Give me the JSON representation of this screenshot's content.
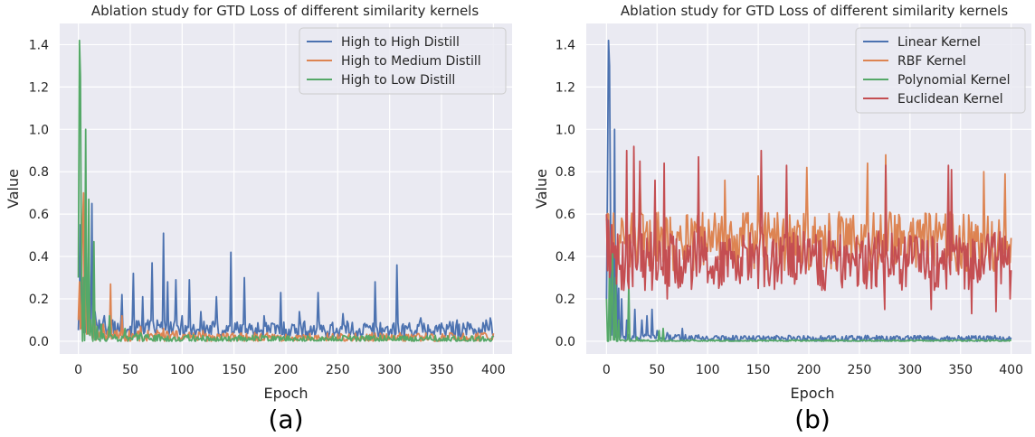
{
  "colors": {
    "background": "#eaeaf2",
    "grid": "#ffffff",
    "blue": "#4c72b0",
    "orange": "#dd8452",
    "green": "#55a868",
    "red": "#c44e52"
  },
  "chart_data": [
    {
      "type": "line",
      "caption": "(a)",
      "title": "Ablation study for GTD Loss of different similarity kernels",
      "xlabel": "Epoch",
      "ylabel": "Value",
      "xlim": [
        -18,
        418
      ],
      "ylim": [
        -0.06,
        1.5
      ],
      "xticks": [
        0,
        50,
        100,
        150,
        200,
        250,
        300,
        350,
        400
      ],
      "xtick_labels": [
        "0",
        "50",
        "100",
        "150",
        "200",
        "250",
        "300",
        "350",
        "400"
      ],
      "yticks": [
        0.0,
        0.2,
        0.4,
        0.6,
        0.8,
        1.0,
        1.2,
        1.4
      ],
      "ytick_labels": [
        "0.0",
        "0.2",
        "0.4",
        "0.6",
        "0.8",
        "1.0",
        "1.2",
        "1.4"
      ],
      "grid": true,
      "legend_position": "top-right",
      "series": [
        {
          "name": "High to High Distill",
          "color": "#4c72b0",
          "base": 0.07,
          "noise": 0.04,
          "end_base": 0.055,
          "peaks": [
            [
              1,
              0.2
            ],
            [
              2,
              0.55
            ],
            [
              4,
              0.3
            ],
            [
              6,
              0.12
            ],
            [
              8,
              0.3
            ],
            [
              10,
              0.5
            ],
            [
              13,
              0.65
            ],
            [
              16,
              0.14
            ],
            [
              20,
              0.1
            ],
            [
              25,
              0.12
            ],
            [
              33,
              0.1
            ],
            [
              42,
              0.22
            ],
            [
              53,
              0.32
            ],
            [
              62,
              0.21
            ],
            [
              71,
              0.37
            ],
            [
              76,
              0.1
            ],
            [
              82,
              0.51
            ],
            [
              86,
              0.28
            ],
            [
              94,
              0.29
            ],
            [
              100,
              0.12
            ],
            [
              107,
              0.29
            ],
            [
              118,
              0.14
            ],
            [
              133,
              0.21
            ],
            [
              147,
              0.42
            ],
            [
              160,
              0.3
            ],
            [
              179,
              0.12
            ],
            [
              195,
              0.23
            ],
            [
              213,
              0.14
            ],
            [
              231,
              0.23
            ],
            [
              255,
              0.13
            ],
            [
              286,
              0.28
            ],
            [
              307,
              0.36
            ],
            [
              330,
              0.11
            ],
            [
              365,
              0.1
            ],
            [
              393,
              0.1
            ],
            [
              397,
              0.11
            ]
          ]
        },
        {
          "name": "High to Medium Distill",
          "color": "#dd8452",
          "base": 0.035,
          "noise": 0.03,
          "end_base": 0.01,
          "peaks": [
            [
              0,
              0.1
            ],
            [
              1,
              0.28
            ],
            [
              3,
              0.15
            ],
            [
              4,
              0.55
            ],
            [
              5,
              0.7
            ],
            [
              7,
              0.42
            ],
            [
              9,
              0.25
            ],
            [
              12,
              0.1
            ],
            [
              16,
              0.1
            ],
            [
              24,
              0.08
            ],
            [
              31,
              0.27
            ],
            [
              42,
              0.12
            ],
            [
              60,
              0.07
            ],
            [
              82,
              0.06
            ],
            [
              120,
              0.05
            ],
            [
              170,
              0.04
            ]
          ]
        },
        {
          "name": "High to Low Distill",
          "color": "#55a868",
          "base": 0.02,
          "noise": 0.02,
          "end_base": 0.008,
          "peaks": [
            [
              0,
              0.3
            ],
            [
              1,
              1.42
            ],
            [
              2,
              1.25
            ],
            [
              3,
              0.25
            ],
            [
              5,
              0.3
            ],
            [
              7,
              1.0
            ],
            [
              8,
              0.2
            ],
            [
              10,
              0.67
            ],
            [
              12,
              0.1
            ],
            [
              15,
              0.47
            ],
            [
              18,
              0.07
            ],
            [
              22,
              0.08
            ],
            [
              30,
              0.12
            ],
            [
              45,
              0.06
            ],
            [
              60,
              0.04
            ]
          ]
        }
      ]
    },
    {
      "type": "line",
      "caption": "(b)",
      "title": "Ablation study for GTD Loss of different similarity kernels",
      "xlabel": "Epoch",
      "ylabel": "Value",
      "xlim": [
        -20,
        420
      ],
      "ylim": [
        -0.06,
        1.5
      ],
      "xticks": [
        0,
        50,
        100,
        150,
        200,
        250,
        300,
        350,
        400
      ],
      "xtick_labels": [
        "0",
        "50",
        "100",
        "150",
        "200",
        "250",
        "300",
        "350",
        "400"
      ],
      "yticks": [
        0.0,
        0.2,
        0.4,
        0.6,
        0.8,
        1.0,
        1.2,
        1.4
      ],
      "ytick_labels": [
        "0.0",
        "0.2",
        "0.4",
        "0.6",
        "0.8",
        "1.0",
        "1.2",
        "1.4"
      ],
      "grid": true,
      "legend_position": "top-right",
      "series": [
        {
          "name": "Linear Kernel",
          "color": "#4c72b0",
          "base": 0.02,
          "noise": 0.015,
          "end_base": 0.012,
          "peaks": [
            [
              0,
              0.2
            ],
            [
              1,
              0.8
            ],
            [
              2,
              1.42
            ],
            [
              3,
              1.3
            ],
            [
              4,
              0.6
            ],
            [
              6,
              0.4
            ],
            [
              8,
              1.0
            ],
            [
              10,
              0.3
            ],
            [
              12,
              0.25
            ],
            [
              15,
              0.2
            ],
            [
              20,
              0.1
            ],
            [
              28,
              0.15
            ],
            [
              35,
              0.1
            ],
            [
              40,
              0.12
            ],
            [
              45,
              0.15
            ],
            [
              50,
              0.05
            ],
            [
              60,
              0.04
            ],
            [
              75,
              0.06
            ]
          ]
        },
        {
          "name": "RBF Kernel",
          "color": "#dd8452",
          "base": 0.47,
          "noise": 0.14,
          "peaks": [
            [
              0,
              0.57
            ],
            [
              2,
              0.6
            ],
            [
              5,
              0.45
            ],
            [
              33,
              0.8
            ],
            [
              117,
              0.76
            ],
            [
              150,
              0.78
            ],
            [
              198,
              0.82
            ],
            [
              258,
              0.84
            ],
            [
              276,
              0.88
            ],
            [
              373,
              0.8
            ],
            [
              394,
              0.79
            ]
          ]
        },
        {
          "name": "Polynomial Kernel",
          "color": "#55a868",
          "base": 0.003,
          "noise": 0.004,
          "end_base": 0.002,
          "peaks": [
            [
              0,
              0.2
            ],
            [
              3,
              0.4
            ],
            [
              5,
              0.2
            ],
            [
              6,
              0.42
            ],
            [
              9,
              0.3
            ],
            [
              12,
              0.1
            ],
            [
              22,
              0.27
            ],
            [
              30,
              0.02
            ],
            [
              52,
              0.05
            ],
            [
              56,
              0.06
            ]
          ]
        },
        {
          "name": "Euclidean Kernel",
          "color": "#c44e52",
          "base": 0.38,
          "noise": 0.14,
          "peaks": [
            [
              0,
              0.6
            ],
            [
              2,
              0.57
            ],
            [
              5,
              0.55
            ],
            [
              20,
              0.9
            ],
            [
              27,
              0.92
            ],
            [
              33,
              0.85
            ],
            [
              48,
              0.76
            ],
            [
              57,
              0.84
            ],
            [
              91,
              0.87
            ],
            [
              153,
              0.9
            ],
            [
              178,
              0.83
            ],
            [
              276,
              0.83
            ],
            [
              338,
              0.83
            ],
            [
              341,
              0.81
            ]
          ],
          "dips": [
            [
              60,
              0.2
            ],
            [
              275,
              0.15
            ],
            [
              321,
              0.15
            ],
            [
              361,
              0.13
            ],
            [
              385,
              0.14
            ],
            [
              399,
              0.2
            ]
          ]
        }
      ]
    }
  ]
}
